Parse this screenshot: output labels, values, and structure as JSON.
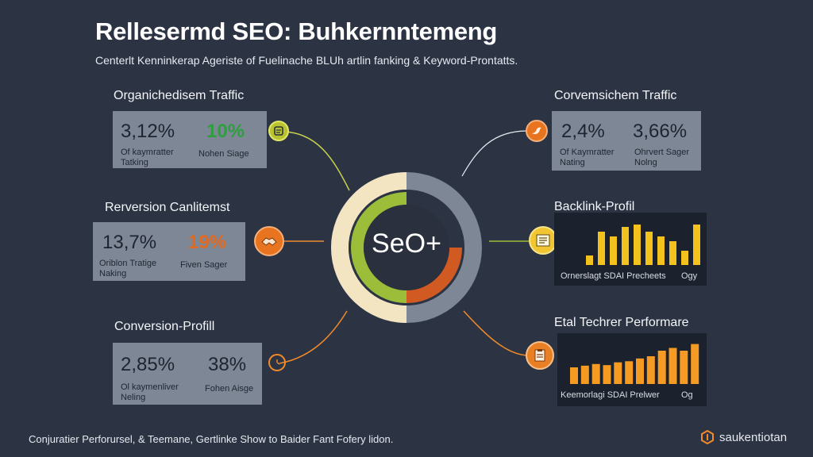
{
  "header": {
    "title": "Rellesermd SEO: Buhkernntemeng",
    "subtitle": "Centerlt Kenninkerap Ageriste of Fuelinache BLUh artlin fanking & Keyword-Prontatts."
  },
  "center": {
    "label": "SeO+",
    "colors": {
      "outer_left": "#f3e4c2",
      "outer_right": "#7d8796",
      "inner_green": "#9cbd3a",
      "inner_orange": "#d05a22"
    }
  },
  "left_sections": [
    {
      "label": "Organichedisem Traffic",
      "value1": "3,12%",
      "value2": "10%",
      "value2_color": "green",
      "caption1_lines": [
        "Of kaymratter",
        "Tatking"
      ],
      "caption2": "Nohen Siage",
      "badge_icon": "document-icon"
    },
    {
      "label": "Rerversion Canlitemst",
      "value1": "13,7%",
      "value2": "19%",
      "value2_color": "orange",
      "caption1_lines": [
        "Oriblon Tratige",
        "Naking"
      ],
      "caption2": "Fiven Sager",
      "badge_icon": "handshake-icon"
    },
    {
      "label": "Conversion-Profill",
      "value1": "2,85%",
      "value2": "38%",
      "value2_color": "dark",
      "caption1_lines": [
        "Ol kaymenliver",
        "Neling"
      ],
      "caption2": "Fohen Aisge",
      "badge_icon": "clock-icon"
    }
  ],
  "right_sections": [
    {
      "label": "Corvemsichem Traffic",
      "value1": "2,4%",
      "value2": "3,66%",
      "caption1_lines": [
        "Of Kaymratter",
        "Nating"
      ],
      "caption2_lines": [
        "Ohrvert Sager",
        "Nolng"
      ],
      "badge_icon": "bird-icon"
    },
    {
      "label": "Backlink-Profil",
      "badge_icon": "checklist-icon",
      "chart_caption_left": "Ornerslagt SDAI Precheets",
      "chart_caption_right": "Ogy"
    },
    {
      "label": "Etal Techrer Performare",
      "badge_icon": "clipboard-icon",
      "chart_caption_left": "Keemorlagi SDAI Prelwer",
      "chart_caption_right": "Og"
    }
  ],
  "chart_data": [
    {
      "type": "bar",
      "color": "#f3c21d",
      "values": [
        2,
        7,
        6,
        8,
        8.5,
        7,
        6,
        5,
        3,
        8.5
      ],
      "ylim": [
        0,
        9
      ]
    },
    {
      "type": "bar",
      "color": "#f59a23",
      "values": [
        3,
        3.3,
        3.6,
        3.4,
        3.9,
        4.1,
        4.6,
        5,
        6,
        6.5,
        6,
        7.2
      ],
      "ylim": [
        0,
        8
      ]
    }
  ],
  "footer": {
    "text": "Conjuratier Perforursel, & Teemane, Gertlinke Show to Baider Fant Fofery lidon."
  },
  "brand": {
    "name": "saukentiotan"
  }
}
